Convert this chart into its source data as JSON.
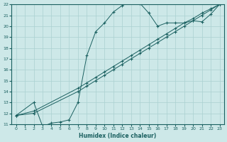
{
  "title": "",
  "xlabel": "Humidex (Indice chaleur)",
  "xlim": [
    -0.5,
    23.5
  ],
  "ylim": [
    11,
    22
  ],
  "xticks": [
    0,
    1,
    2,
    3,
    4,
    5,
    6,
    7,
    8,
    9,
    10,
    11,
    12,
    13,
    14,
    15,
    16,
    17,
    18,
    19,
    20,
    21,
    22,
    23
  ],
  "yticks": [
    11,
    12,
    13,
    14,
    15,
    16,
    17,
    18,
    19,
    20,
    21,
    22
  ],
  "background_color": "#cde8e8",
  "line_color": "#1a6060",
  "grid_color": "#aad0d0",
  "curves": [
    {
      "x": [
        0,
        2,
        3,
        4,
        5,
        6,
        7,
        8,
        9,
        10,
        11,
        12,
        13,
        14,
        15,
        16,
        17,
        18,
        19,
        20,
        21,
        22,
        23
      ],
      "y": [
        11.8,
        13.0,
        10.8,
        11.1,
        11.2,
        11.4,
        13.0,
        17.3,
        19.5,
        20.3,
        21.3,
        21.9,
        22.2,
        22.1,
        21.2,
        20.0,
        20.3,
        20.3,
        20.3,
        20.5,
        20.4,
        21.1,
        22.0
      ]
    },
    {
      "x": [
        0,
        2,
        7,
        8,
        9,
        10,
        11,
        12,
        13,
        14,
        15,
        16,
        17,
        18,
        19,
        20,
        21,
        22,
        23
      ],
      "y": [
        11.8,
        12.0,
        14.0,
        14.5,
        15.0,
        15.5,
        16.0,
        16.5,
        17.0,
        17.5,
        18.0,
        18.5,
        19.0,
        19.5,
        20.0,
        20.5,
        21.0,
        21.5,
        22.0
      ]
    },
    {
      "x": [
        0,
        2,
        7,
        8,
        9,
        10,
        11,
        12,
        13,
        14,
        15,
        16,
        17,
        18,
        19,
        20,
        21,
        22,
        23
      ],
      "y": [
        11.8,
        12.2,
        14.3,
        14.8,
        15.3,
        15.8,
        16.3,
        16.8,
        17.3,
        17.8,
        18.3,
        18.8,
        19.3,
        19.8,
        20.3,
        20.7,
        21.2,
        21.6,
        22.0
      ]
    }
  ]
}
